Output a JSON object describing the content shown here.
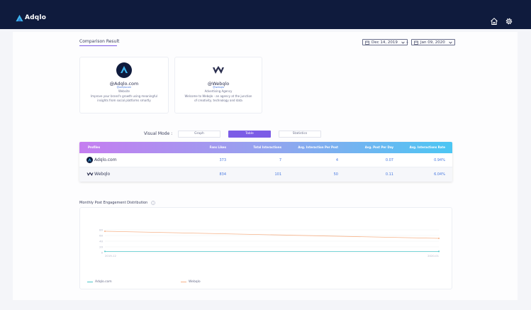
{
  "app": {
    "brand_name": "Adqlo"
  },
  "colors": {
    "accent": "#7c5ce6",
    "topbar": "#0f1b3d",
    "link": "#4a7ae0",
    "series_adqlo": "#4cc6c8",
    "series_webqlo": "#f6b38a"
  },
  "icons": {
    "brand": "adqlo-logo",
    "home": "home-icon",
    "settings": "gear-icon",
    "calendar": "calendar-icon",
    "chevron": "chevron-down-icon",
    "info": "info-icon"
  },
  "comparison": {
    "title": "Comparison Result",
    "date_from": "Dec 14, 2019",
    "date_separator": "–",
    "date_to": "Jan 09, 2020"
  },
  "profiles": [
    {
      "name": "@Adqlo.com",
      "handle": "@adqlocom",
      "category": "Website",
      "description": "Improve your brand's growth using meaningful insights from social platforms smartly"
    },
    {
      "name": "@Webqlo",
      "handle": "@webqlo",
      "category": "Advertising Agency",
      "description": "Welcome to Webqlo - an agency at the junction of creativity, technology and data"
    }
  ],
  "visual_mode": {
    "label": "Visual Mode :",
    "options": [
      "Graph",
      "Table",
      "Statistics"
    ],
    "selected": "Table"
  },
  "table": {
    "headers": [
      "Profiles",
      "Fans Likes",
      "Total Interactions",
      "Avg. Interaction Per Post",
      "Avg. Post Per Day",
      "Avg. Interactions Rate"
    ],
    "rows": [
      {
        "profile": "Adqlo.com",
        "fans_likes": "373",
        "total_interactions": "7",
        "avg_interaction_per_post": "4",
        "avg_post_per_day": "0.07",
        "avg_interactions_rate": "0.94%"
      },
      {
        "profile": "Webqlo",
        "fans_likes": "834",
        "total_interactions": "101",
        "avg_interaction_per_post": "50",
        "avg_post_per_day": "0.11",
        "avg_interactions_rate": "6.04%"
      }
    ]
  },
  "engagement": {
    "title": "Monthly Post Engagement Distribution"
  },
  "chart_data": {
    "type": "line",
    "categories": [
      "2019-12",
      "2020-01"
    ],
    "series": [
      {
        "name": "Adqlo.com",
        "values": [
          4,
          4
        ]
      },
      {
        "name": "Webqlo",
        "values": [
          75,
          50
        ]
      }
    ],
    "y_ticks": [
      "0",
      "20",
      "40",
      "60",
      "80"
    ],
    "ylim": [
      0,
      80
    ],
    "grid": true,
    "legend": "bottom-left"
  }
}
